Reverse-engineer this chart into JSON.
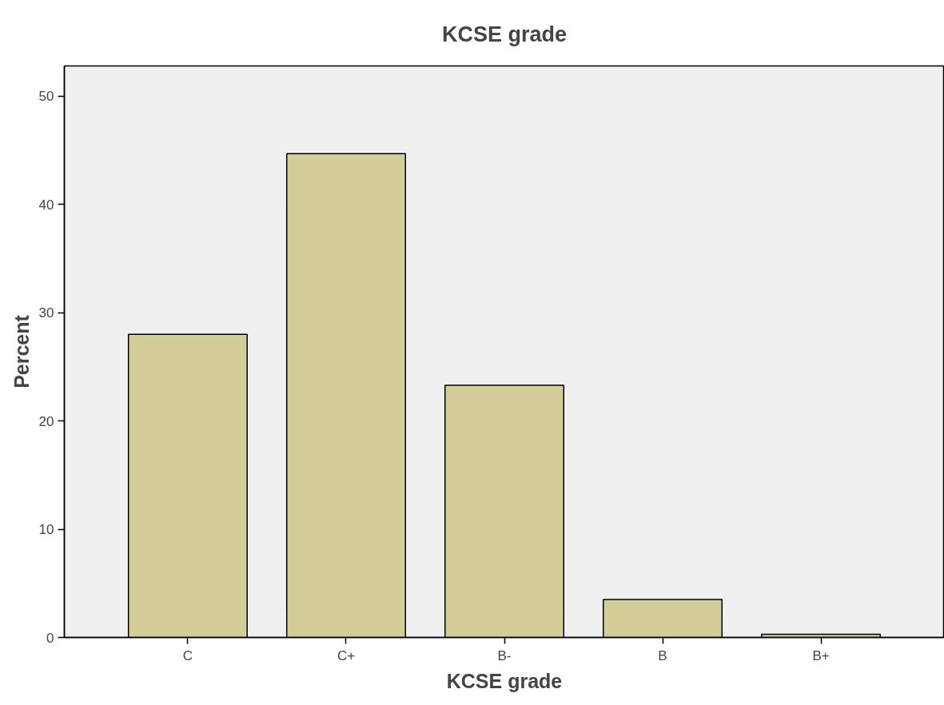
{
  "chart_data": {
    "type": "bar",
    "title": "KCSE grade",
    "xlabel": "KCSE grade",
    "ylabel": "Percent",
    "categories": [
      "C",
      "C+",
      "B-",
      "B",
      "B+"
    ],
    "values": [
      28.0,
      44.7,
      23.3,
      3.5,
      0.3
    ],
    "color": "#d3ce97",
    "ylim": [
      0,
      52.8
    ],
    "yticks": [
      0,
      10,
      20,
      30,
      40,
      50
    ],
    "grid": false
  }
}
